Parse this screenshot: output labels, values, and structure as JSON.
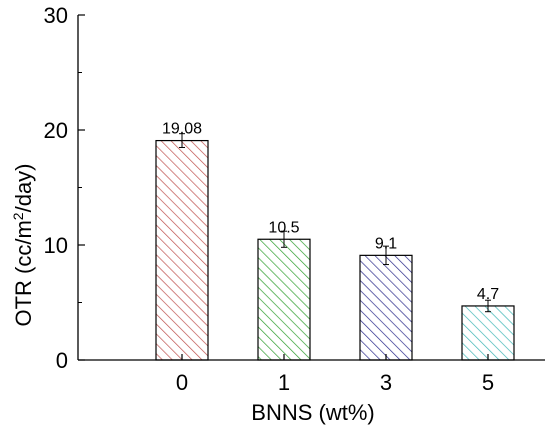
{
  "chart_data": {
    "type": "bar",
    "categories": [
      "0",
      "1",
      "3",
      "5"
    ],
    "values": [
      19.08,
      10.5,
      9.1,
      4.7
    ],
    "value_labels": [
      "19.08",
      "10.5",
      "9.1",
      "4.7"
    ],
    "error_bars": [
      0.6,
      0.7,
      0.8,
      0.5
    ],
    "colors": [
      "#c0504d",
      "#2e9e2e",
      "#2a2a8c",
      "#3fb7b7"
    ],
    "fill_style": "diagonal-hatch",
    "ylim": [
      0,
      30
    ],
    "yticks": [
      0,
      10,
      20,
      30
    ],
    "xlabel": "BNNS (wt%)",
    "ylabel": {
      "main": "OTR (cc/m",
      "sup": "2",
      "tail": "/day)"
    },
    "grid": false,
    "legend": "none"
  }
}
